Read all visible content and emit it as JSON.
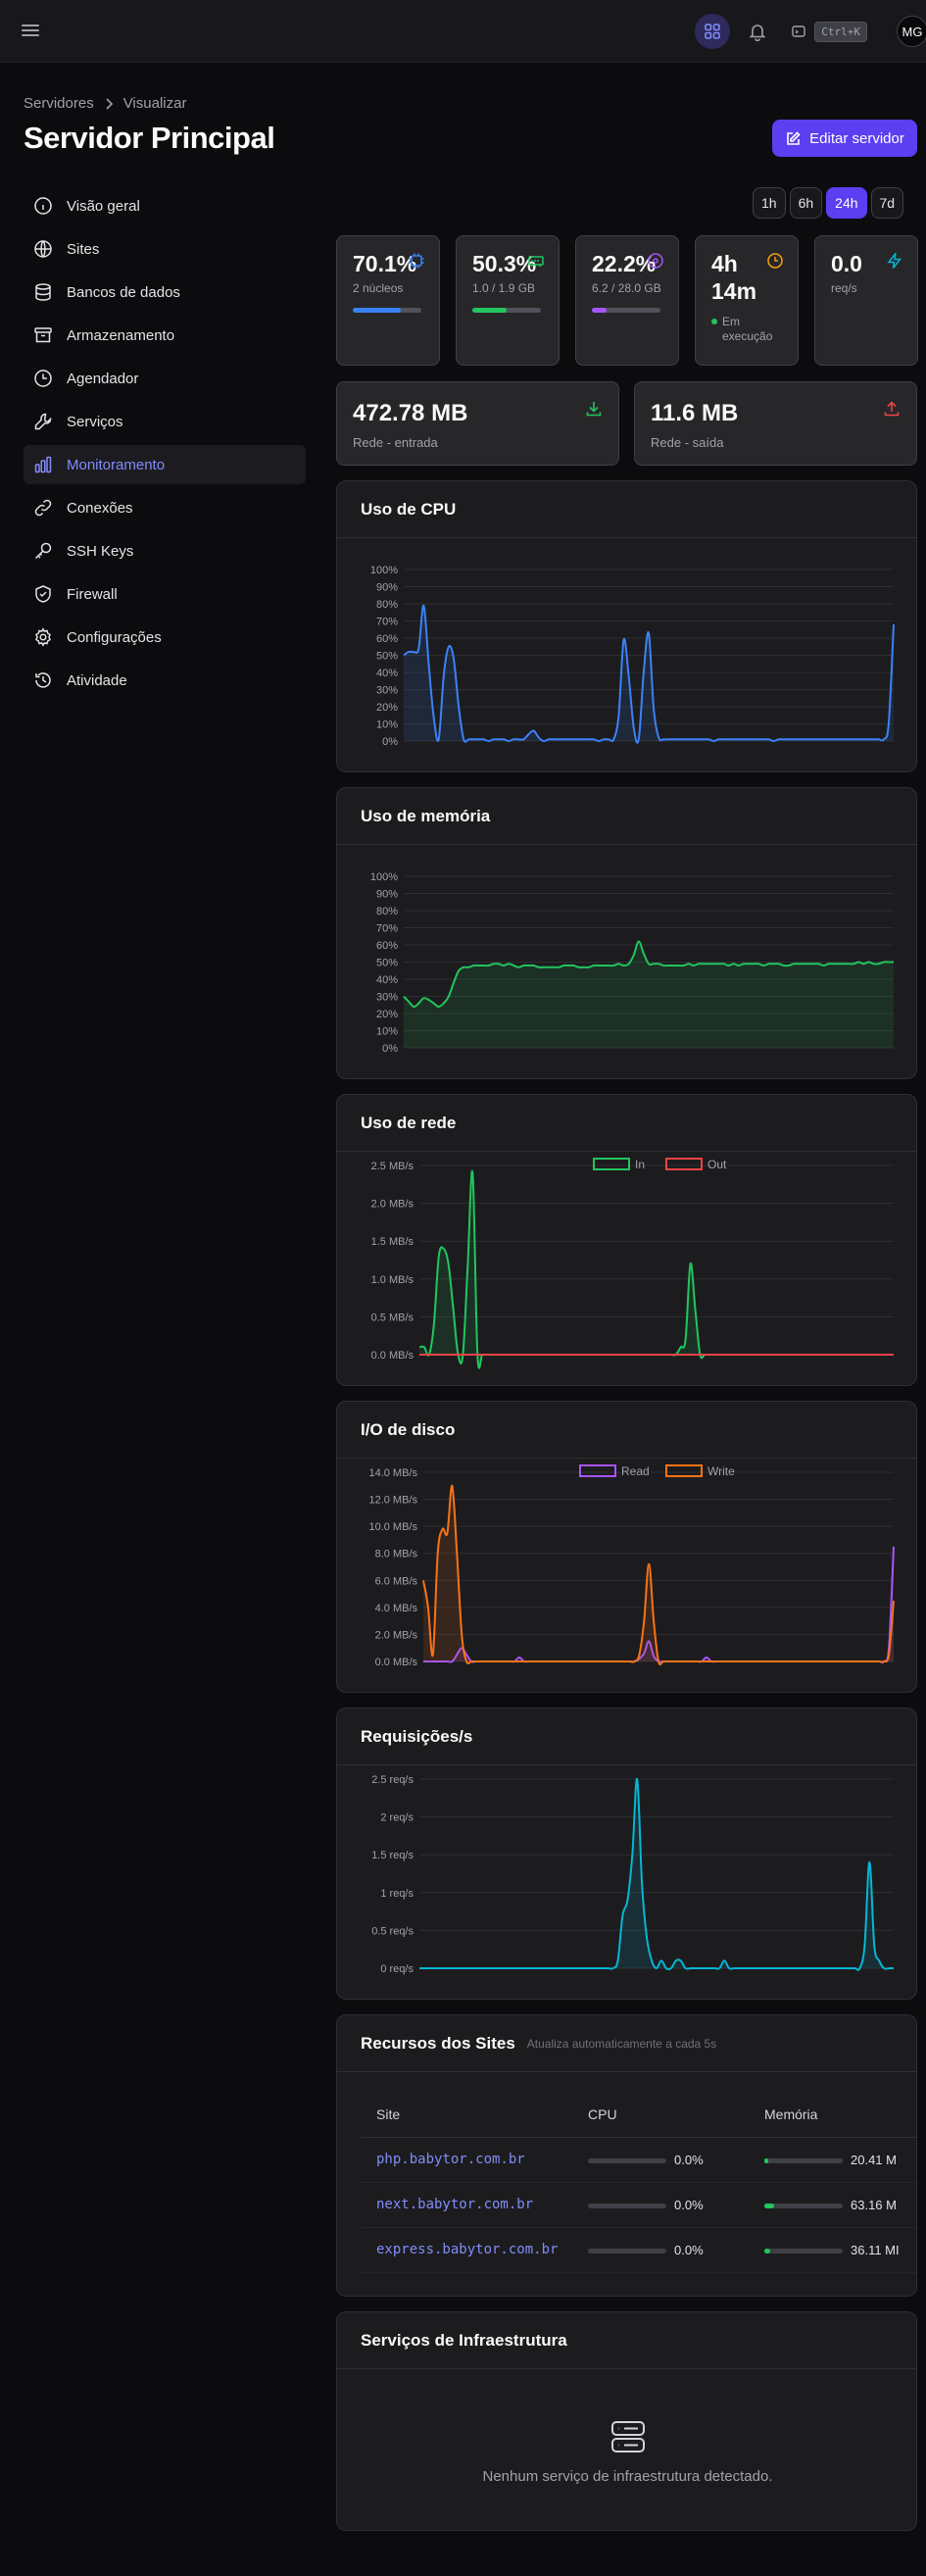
{
  "topbar": {
    "search_shortcut": "Ctrl+K",
    "avatar_initials": "MG"
  },
  "breadcrumb": {
    "parent": "Servidores",
    "current": "Visualizar"
  },
  "page_title": "Servidor Principal",
  "edit_button": "Editar servidor",
  "sidebar": {
    "items": [
      {
        "label": "Visão geral",
        "icon": "info-icon"
      },
      {
        "label": "Sites",
        "icon": "globe-icon"
      },
      {
        "label": "Bancos de dados",
        "icon": "database-icon"
      },
      {
        "label": "Armazenamento",
        "icon": "archive-icon"
      },
      {
        "label": "Agendador",
        "icon": "clock-icon"
      },
      {
        "label": "Serviços",
        "icon": "wrench-icon"
      },
      {
        "label": "Monitoramento",
        "icon": "bar-chart-icon",
        "active": true
      },
      {
        "label": "Conexões",
        "icon": "link-icon"
      },
      {
        "label": "SSH Keys",
        "icon": "key-icon"
      },
      {
        "label": "Firewall",
        "icon": "shield-icon"
      },
      {
        "label": "Configurações",
        "icon": "gear-icon"
      },
      {
        "label": "Atividade",
        "icon": "history-icon"
      }
    ]
  },
  "time_ranges": [
    "1h",
    "6h",
    "24h",
    "7d"
  ],
  "time_range_selected": "24h",
  "stats": {
    "cpu": {
      "value": "70.1%",
      "sub": "2 núcleos",
      "progress": 0.7,
      "color": "#3b82f6"
    },
    "memory": {
      "value": "50.3%",
      "sub": "1.0 / 1.9 GB",
      "progress": 0.5,
      "color": "#22c55e"
    },
    "disk": {
      "value": "22.2%",
      "sub": "6.2 / 28.0 GB",
      "progress": 0.22,
      "color": "#a855f7"
    },
    "uptime": {
      "value": "4h 14m",
      "status": "Em execução",
      "color": "#f59e0b"
    },
    "requests": {
      "value": "0.0",
      "sub": "req/s",
      "color": "#06b6d4"
    }
  },
  "network": {
    "in": {
      "value": "472.78 MB",
      "label": "Rede - entrada",
      "color": "#22c55e"
    },
    "out": {
      "value": "11.6 MB",
      "label": "Rede - saída",
      "color": "#ef4444"
    }
  },
  "cards": {
    "cpu": "Uso de CPU",
    "memory": "Uso de memória",
    "network": "Uso de rede",
    "disk": "I/O de disco",
    "requests": "Requisições/s",
    "resources": "Recursos dos Sites",
    "resources_sub": "Atualiza automaticamente a cada 5s",
    "infra": "Serviços de Infraestrutura"
  },
  "chart_data": [
    {
      "type": "area",
      "id": "cpu",
      "title": "Uso de CPU",
      "yticks": [
        "0%",
        "10%",
        "20%",
        "30%",
        "40%",
        "50%",
        "60%",
        "70%",
        "80%",
        "90%",
        "100%"
      ],
      "ylim": [
        0,
        100
      ],
      "grid": true,
      "series": [
        {
          "color": "#3b82f6",
          "values": [
            50,
            52,
            52,
            54,
            79,
            45,
            14,
            1,
            38,
            55,
            48,
            20,
            1,
            1,
            1,
            1,
            1,
            0,
            1,
            1,
            1,
            0,
            1,
            1,
            1,
            4,
            6,
            2,
            0,
            1,
            1,
            1,
            1,
            1,
            1,
            1,
            1,
            1,
            1,
            0,
            1,
            1,
            1,
            15,
            59,
            38,
            8,
            1,
            40,
            63,
            19,
            2,
            1,
            1,
            1,
            1,
            1,
            1,
            1,
            1,
            1,
            1,
            0,
            1,
            1,
            1,
            1,
            1,
            1,
            1,
            1,
            1,
            1,
            1,
            0,
            1,
            1,
            1,
            1,
            1,
            1,
            1,
            1,
            1,
            1,
            1,
            1,
            1,
            1,
            1,
            1,
            1,
            1,
            1,
            1,
            1,
            1,
            10,
            68
          ]
        }
      ]
    },
    {
      "type": "area",
      "id": "memory",
      "title": "Uso de memória",
      "yticks": [
        "0%",
        "10%",
        "20%",
        "30%",
        "40%",
        "50%",
        "60%",
        "70%",
        "80%",
        "90%",
        "100%"
      ],
      "ylim": [
        0,
        100
      ],
      "grid": true,
      "series": [
        {
          "color": "#22c55e",
          "values": [
            30,
            27,
            24,
            26,
            29,
            28,
            26,
            24,
            26,
            30,
            38,
            45,
            47,
            47,
            48,
            48,
            48,
            48,
            49,
            49,
            48,
            49,
            48,
            47,
            48,
            48,
            48,
            47,
            47,
            47,
            47,
            47,
            48,
            48,
            48,
            47,
            47,
            47,
            48,
            48,
            48,
            48,
            48,
            49,
            48,
            49,
            54,
            62,
            55,
            49,
            49,
            49,
            48,
            48,
            48,
            48,
            48,
            49,
            48,
            49,
            49,
            49,
            49,
            49,
            49,
            48,
            49,
            48,
            49,
            49,
            49,
            49,
            48,
            49,
            49,
            49,
            48,
            48,
            49,
            49,
            49,
            49,
            49,
            49,
            48,
            49,
            49,
            49,
            49,
            49,
            49,
            50,
            49,
            50,
            49,
            49,
            50,
            50,
            50
          ]
        }
      ]
    },
    {
      "type": "area",
      "id": "network",
      "title": "Uso de rede",
      "yticks": [
        "0.0 MB/s",
        "0.5 MB/s",
        "1.0 MB/s",
        "1.5 MB/s",
        "2.0 MB/s",
        "2.5 MB/s"
      ],
      "ylim": [
        0,
        2.5
      ],
      "grid": true,
      "legend": "top-center",
      "series": [
        {
          "name": "In",
          "color": "#22c55e",
          "values": [
            0.1,
            0.1,
            0,
            0.4,
            1.3,
            1.4,
            1.2,
            0.6,
            0,
            0,
            1.2,
            2.4,
            0,
            0,
            0,
            0,
            0,
            0,
            0,
            0,
            0,
            0,
            0,
            0,
            0,
            0,
            0,
            0,
            0,
            0,
            0,
            0,
            0,
            0,
            0,
            0,
            0,
            0,
            0,
            0,
            0,
            0,
            0,
            0,
            0,
            0,
            0,
            0,
            0,
            0,
            0,
            0,
            0,
            0,
            0.1,
            0.2,
            1.2,
            0.6,
            0,
            0,
            0,
            0,
            0,
            0,
            0,
            0,
            0,
            0,
            0,
            0,
            0,
            0,
            0,
            0,
            0,
            0,
            0,
            0,
            0,
            0,
            0,
            0,
            0,
            0,
            0,
            0,
            0,
            0,
            0,
            0,
            0,
            0,
            0,
            0,
            0,
            0,
            0,
            0,
            0
          ]
        },
        {
          "name": "Out",
          "color": "#ef4444",
          "values": [
            0,
            0,
            0,
            0,
            0,
            0,
            0,
            0,
            0,
            0,
            0,
            0,
            0,
            0,
            0,
            0,
            0,
            0,
            0,
            0,
            0,
            0,
            0,
            0,
            0,
            0,
            0,
            0,
            0,
            0,
            0,
            0,
            0,
            0,
            0,
            0,
            0,
            0,
            0,
            0,
            0,
            0,
            0,
            0,
            0,
            0,
            0,
            0,
            0,
            0,
            0,
            0,
            0,
            0,
            0,
            0,
            0,
            0,
            0,
            0,
            0,
            0,
            0,
            0,
            0,
            0,
            0,
            0,
            0,
            0,
            0,
            0,
            0,
            0,
            0,
            0,
            0,
            0,
            0,
            0,
            0,
            0,
            0,
            0,
            0,
            0,
            0,
            0,
            0,
            0,
            0,
            0,
            0,
            0,
            0,
            0,
            0,
            0,
            0
          ]
        }
      ]
    },
    {
      "type": "area",
      "id": "disk",
      "title": "I/O de disco",
      "yticks": [
        "0.0 MB/s",
        "2.0 MB/s",
        "4.0 MB/s",
        "6.0 MB/s",
        "8.0 MB/s",
        "10.0 MB/s",
        "12.0 MB/s",
        "14.0 MB/s"
      ],
      "ylim": [
        0,
        14
      ],
      "grid": true,
      "legend": "top-center",
      "series": [
        {
          "name": "Read",
          "color": "#a855f7",
          "values": [
            0,
            0,
            0,
            0,
            0,
            0,
            0,
            0.5,
            1.0,
            0.5,
            0,
            0,
            0,
            0,
            0,
            0,
            0,
            0,
            0,
            0,
            0.3,
            0,
            0,
            0,
            0,
            0,
            0,
            0,
            0,
            0,
            0,
            0,
            0,
            0,
            0,
            0,
            0,
            0,
            0,
            0,
            0,
            0,
            0,
            0,
            0,
            0.2,
            0.6,
            1.5,
            0.4,
            0,
            0,
            0,
            0,
            0,
            0,
            0,
            0,
            0,
            0,
            0.3,
            0,
            0,
            0,
            0,
            0,
            0,
            0,
            0,
            0,
            0,
            0,
            0,
            0,
            0,
            0,
            0,
            0,
            0,
            0,
            0,
            0,
            0,
            0,
            0,
            0,
            0,
            0,
            0,
            0,
            0,
            0,
            0,
            0,
            0,
            0,
            0,
            0,
            1.0,
            8.5
          ]
        },
        {
          "name": "Write",
          "color": "#f97316",
          "values": [
            6,
            4,
            0.5,
            8,
            9.8,
            9.5,
            13,
            8,
            2,
            0,
            0,
            0,
            0,
            0,
            0,
            0,
            0,
            0,
            0,
            0,
            0,
            0,
            0,
            0,
            0,
            0,
            0,
            0,
            0,
            0,
            0,
            0,
            0,
            0,
            0,
            0,
            0,
            0,
            0,
            0,
            0,
            0,
            0,
            0,
            0,
            0.5,
            3,
            7.2,
            3,
            0,
            0,
            0,
            0,
            0,
            0,
            0,
            0,
            0,
            0,
            0,
            0,
            0,
            0,
            0,
            0,
            0,
            0,
            0,
            0,
            0,
            0,
            0,
            0,
            0,
            0,
            0,
            0,
            0,
            0,
            0,
            0,
            0,
            0,
            0,
            0,
            0,
            0,
            0,
            0,
            0,
            0,
            0,
            0,
            0,
            0,
            0,
            0,
            0.5,
            4.5
          ]
        }
      ]
    },
    {
      "type": "area",
      "id": "requests",
      "title": "Requisições/s",
      "yticks": [
        "0 req/s",
        "0.5 req/s",
        "1 req/s",
        "1.5 req/s",
        "2 req/s",
        "2.5 req/s"
      ],
      "ylim": [
        0,
        2.5
      ],
      "grid": true,
      "series": [
        {
          "color": "#06b6d4",
          "values": [
            0,
            0,
            0,
            0,
            0,
            0,
            0,
            0,
            0,
            0,
            0,
            0,
            0,
            0,
            0,
            0,
            0,
            0,
            0,
            0,
            0,
            0,
            0,
            0,
            0,
            0,
            0,
            0,
            0,
            0,
            0,
            0,
            0,
            0,
            0,
            0,
            0,
            0,
            0,
            0,
            0,
            0.1,
            0.7,
            0.9,
            1.5,
            2.5,
            1.1,
            0.4,
            0.1,
            0,
            0.1,
            0,
            0,
            0.1,
            0.1,
            0,
            0,
            0,
            0,
            0,
            0,
            0,
            0,
            0.1,
            0,
            0,
            0,
            0,
            0,
            0,
            0,
            0,
            0,
            0,
            0,
            0,
            0,
            0,
            0,
            0,
            0,
            0,
            0,
            0,
            0,
            0,
            0,
            0,
            0,
            0,
            0,
            0,
            0.3,
            1.4,
            0.3,
            0.1,
            0,
            0,
            0
          ]
        }
      ]
    }
  ],
  "resources": {
    "headers": [
      "Site",
      "CPU",
      "Memória"
    ],
    "rows": [
      {
        "site": "php.babytor.com.br",
        "cpu": "0.0%",
        "cpu_frac": 0.0,
        "memory": "20.41 M",
        "mem_frac": 0.05
      },
      {
        "site": "next.babytor.com.br",
        "cpu": "0.0%",
        "cpu_frac": 0.0,
        "memory": "63.16 M",
        "mem_frac": 0.12
      },
      {
        "site": "express.babytor.com.br",
        "cpu": "0.0%",
        "cpu_frac": 0.0,
        "memory": "36.11 MI",
        "mem_frac": 0.07
      }
    ]
  },
  "infra_empty": "Nenhum serviço de infraestrutura detectado."
}
